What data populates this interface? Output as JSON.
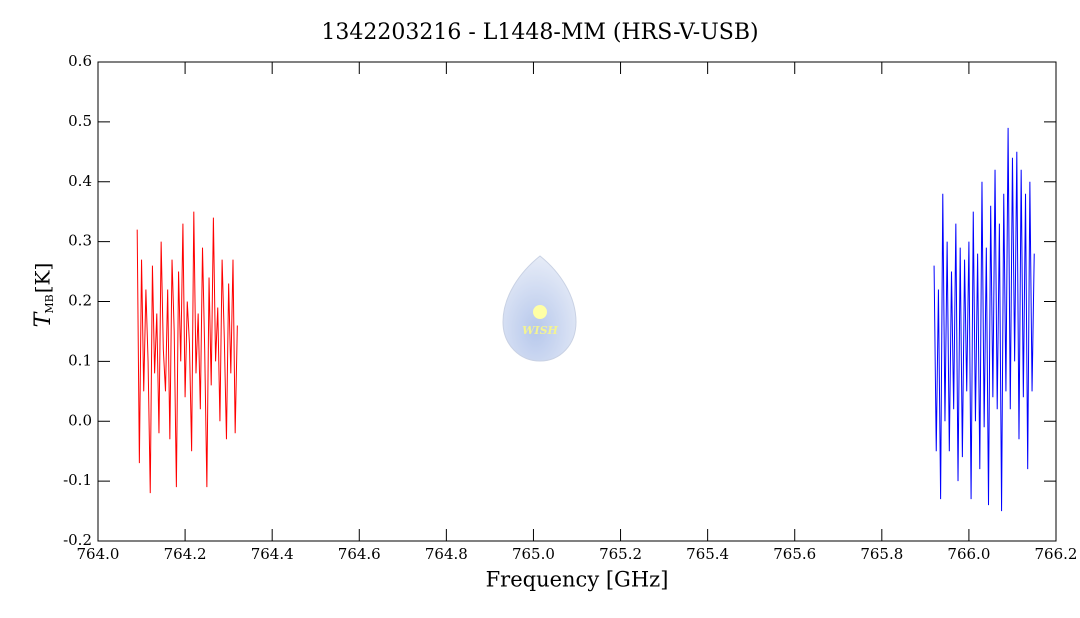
{
  "chart_data": {
    "type": "line",
    "title": "1342203216 - L1448-MM (HRS-V-USB)",
    "xlabel": "Frequency [GHz]",
    "ylabel": {
      "symbol": "T",
      "subscript": "MB",
      "unit": "[K]"
    },
    "logo_text": "WISH",
    "xlim": [
      764.0,
      766.2
    ],
    "ylim": [
      -0.2,
      0.6
    ],
    "xticks": [
      {
        "value": 764.0,
        "label": "764.0"
      },
      764.2,
      764.4,
      764.6,
      764.8,
      {
        "value": 765.0,
        "label": "765.0"
      },
      765.2,
      765.4,
      765.6,
      765.8,
      {
        "value": 766.0,
        "label": "766.0"
      },
      766.2
    ],
    "yticks": [
      {
        "value": -0.2,
        "label": "-0.2"
      },
      {
        "value": -0.1,
        "label": "-0.1"
      },
      {
        "value": 0,
        "label": "0.0"
      },
      0.1,
      0.2,
      0.3,
      0.4,
      0.5,
      0.6
    ],
    "series": [
      {
        "color": "#ff0000",
        "x": [
          764.09,
          764.095,
          764.1,
          764.105,
          764.11,
          764.115,
          764.12,
          764.125,
          764.13,
          764.135,
          764.14,
          764.145,
          764.15,
          764.155,
          764.16,
          764.165,
          764.17,
          764.175,
          764.18,
          764.185,
          764.19,
          764.195,
          764.2,
          764.205,
          764.21,
          764.215,
          764.22,
          764.225,
          764.23,
          764.235,
          764.24,
          764.245,
          764.25,
          764.255,
          764.26,
          764.265,
          764.27,
          764.275,
          764.28,
          764.285,
          764.29,
          764.295,
          764.3,
          764.305,
          764.31,
          764.315,
          764.32
        ],
        "values": [
          0.32,
          -0.07,
          0.27,
          0.05,
          0.22,
          0.1,
          -0.12,
          0.26,
          0.08,
          0.18,
          -0.02,
          0.3,
          0.12,
          0.05,
          0.22,
          -0.03,
          0.27,
          0.15,
          -0.11,
          0.25,
          0.1,
          0.33,
          0.04,
          0.2,
          0.13,
          -0.05,
          0.35,
          0.08,
          0.18,
          0.02,
          0.29,
          0.12,
          -0.11,
          0.24,
          0.06,
          0.34,
          0.1,
          0.19,
          0.0,
          0.27,
          0.14,
          -0.03,
          0.23,
          0.08,
          0.27,
          -0.02,
          0.16
        ]
      },
      {
        "color": "#0000ff",
        "x": [
          765.92,
          765.925,
          765.93,
          765.935,
          765.94,
          765.945,
          765.95,
          765.955,
          765.96,
          765.965,
          765.97,
          765.975,
          765.98,
          765.985,
          765.99,
          765.995,
          766.0,
          766.005,
          766.01,
          766.015,
          766.02,
          766.025,
          766.03,
          766.035,
          766.04,
          766.045,
          766.05,
          766.055,
          766.06,
          766.065,
          766.07,
          766.075,
          766.08,
          766.085,
          766.09,
          766.095,
          766.1,
          766.105,
          766.11,
          766.115,
          766.12,
          766.125,
          766.13,
          766.135,
          766.14,
          766.145,
          766.15
        ],
        "values": [
          0.26,
          -0.05,
          0.22,
          -0.13,
          0.38,
          0.0,
          0.3,
          -0.05,
          0.25,
          0.02,
          0.33,
          -0.1,
          0.29,
          -0.06,
          0.27,
          0.05,
          0.3,
          -0.13,
          0.35,
          0.0,
          0.28,
          -0.08,
          0.4,
          -0.01,
          0.29,
          -0.14,
          0.36,
          0.04,
          0.42,
          0.02,
          0.33,
          -0.15,
          0.38,
          0.05,
          0.49,
          0.02,
          0.44,
          0.1,
          0.45,
          -0.03,
          0.42,
          0.04,
          0.38,
          -0.08,
          0.4,
          0.05,
          0.28
        ]
      }
    ]
  }
}
